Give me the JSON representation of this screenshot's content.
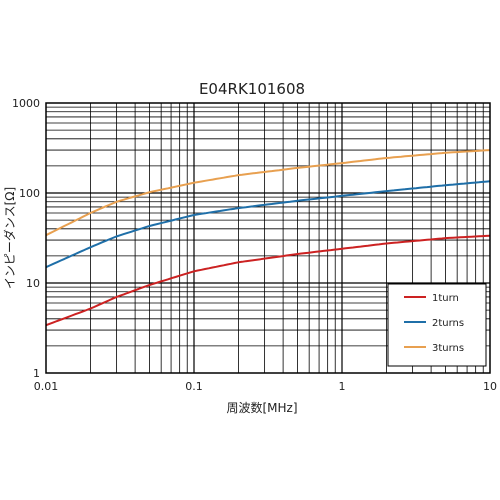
{
  "chart_data": {
    "type": "line",
    "title": "E04RK101608",
    "xlabel": "周波数[MHz]",
    "ylabel": "インピーダンス[Ω]",
    "x_scale": "log",
    "y_scale": "log",
    "xlim": [
      0.01,
      10
    ],
    "ylim": [
      1,
      1000
    ],
    "x_ticks": [
      "0.01",
      "0.1",
      "1",
      "10"
    ],
    "y_ticks": [
      "1",
      "10",
      "100",
      "1000"
    ],
    "grid": true,
    "legend_position": "bottom-right",
    "series": [
      {
        "name": "1turn",
        "color": "#cc2222",
        "x": [
          0.01,
          0.02,
          0.03,
          0.05,
          0.1,
          0.2,
          0.5,
          1,
          2,
          5,
          10
        ],
        "y": [
          3.4,
          5.2,
          7.0,
          9.5,
          13.5,
          17.0,
          21.0,
          24.0,
          27.5,
          31.5,
          33.5
        ]
      },
      {
        "name": "2turns",
        "color": "#1f6fa8",
        "x": [
          0.01,
          0.02,
          0.03,
          0.05,
          0.1,
          0.2,
          0.5,
          1,
          2,
          5,
          10
        ],
        "y": [
          15,
          25,
          33,
          43,
          57,
          68,
          82,
          93,
          105,
          122,
          135
        ]
      },
      {
        "name": "3turns",
        "color": "#e8a050",
        "x": [
          0.01,
          0.02,
          0.03,
          0.05,
          0.1,
          0.2,
          0.5,
          1,
          2,
          5,
          10
        ],
        "y": [
          34,
          60,
          80,
          102,
          130,
          158,
          190,
          215,
          245,
          280,
          300
        ]
      }
    ]
  }
}
